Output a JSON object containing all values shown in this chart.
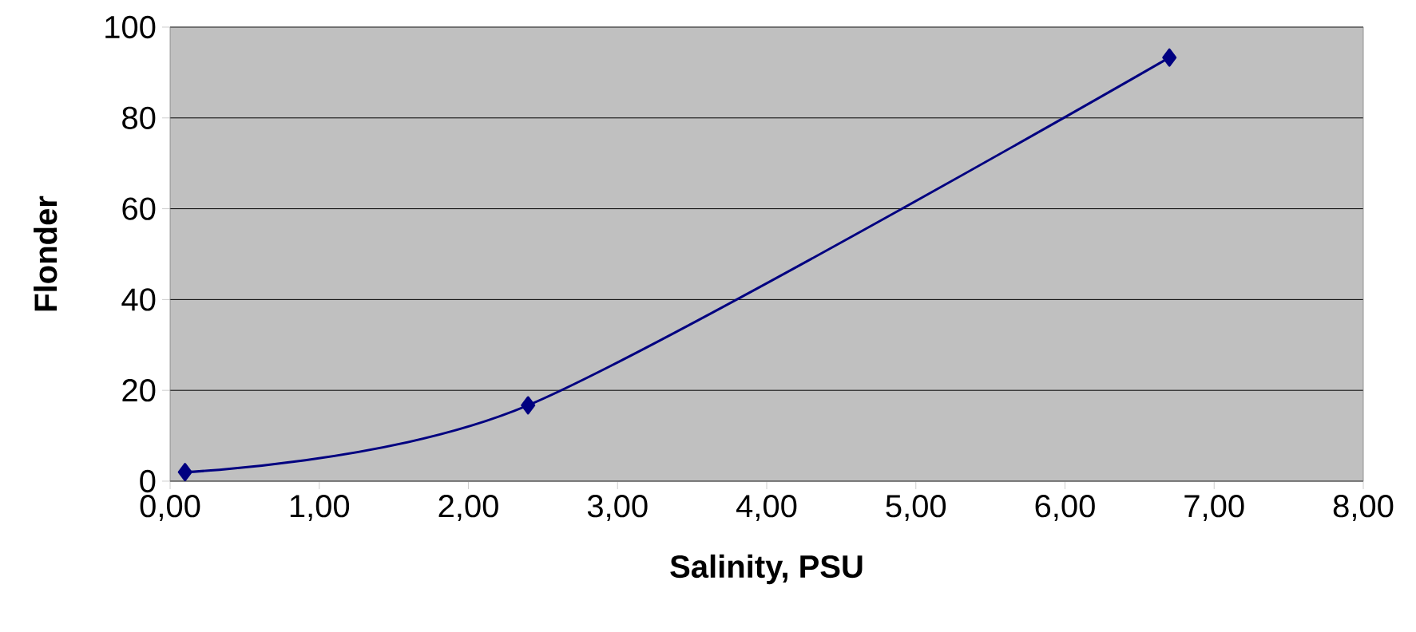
{
  "chart_data": {
    "type": "line",
    "xlabel": "Salinity, PSU",
    "ylabel": "Flonder",
    "x": [
      0.1,
      2.4,
      6.7
    ],
    "series": [
      {
        "color": "#000080",
        "values": [
          2.0,
          16.7,
          93.3
        ]
      }
    ],
    "xlim": [
      0,
      8
    ],
    "ylim": [
      0,
      100
    ],
    "xticks": [
      {
        "value": 0,
        "label": "0,00"
      },
      {
        "value": 1,
        "label": "1,00"
      },
      {
        "value": 2,
        "label": "2,00"
      },
      {
        "value": 3,
        "label": "3,00"
      },
      {
        "value": 4,
        "label": "4,00"
      },
      {
        "value": 5,
        "label": "5,00"
      },
      {
        "value": 6,
        "label": "6,00"
      },
      {
        "value": 7,
        "label": "7,00"
      },
      {
        "value": 8,
        "label": "8,00"
      }
    ],
    "yticks": [
      0,
      20,
      40,
      60,
      80,
      100
    ],
    "grid": "y",
    "marker": "diamond",
    "line_style": "solid"
  }
}
